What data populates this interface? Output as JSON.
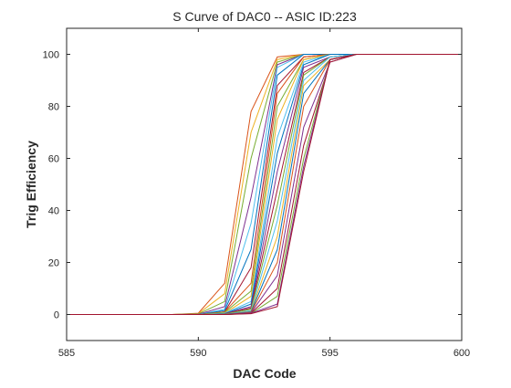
{
  "chart_data": {
    "type": "line",
    "title": "S Curve of DAC0 -- ASIC ID:223",
    "xlabel": "DAC Code",
    "ylabel": "Trig Efficiency",
    "xlim": [
      585,
      600
    ],
    "ylim": [
      -10,
      110
    ],
    "xticks": [
      585,
      590,
      595,
      600
    ],
    "yticks": [
      0,
      20,
      40,
      60,
      80,
      100
    ],
    "grid": false,
    "legend": "none",
    "x": [
      585,
      586,
      587,
      588,
      589,
      590,
      591,
      592,
      593,
      594,
      595,
      596,
      597,
      598,
      599,
      600
    ],
    "series": [
      {
        "color": "#d95319",
        "values": [
          0,
          0,
          0,
          0,
          0,
          0.5,
          12,
          78,
          99,
          100,
          100,
          100,
          100,
          100,
          100,
          100
        ]
      },
      {
        "color": "#edb120",
        "values": [
          0,
          0,
          0,
          0,
          0,
          0.3,
          8,
          70,
          98,
          100,
          100,
          100,
          100,
          100,
          100,
          100
        ]
      },
      {
        "color": "#77ac30",
        "values": [
          0,
          0,
          0,
          0,
          0,
          0.2,
          5,
          60,
          97,
          100,
          100,
          100,
          100,
          100,
          100,
          100
        ]
      },
      {
        "color": "#7e2f8e",
        "values": [
          0,
          0,
          0,
          0,
          0,
          0.1,
          3,
          45,
          96,
          100,
          100,
          100,
          100,
          100,
          100,
          100
        ]
      },
      {
        "color": "#4dbeee",
        "values": [
          0,
          0,
          0,
          0,
          0,
          0,
          2,
          35,
          95,
          100,
          100,
          100,
          100,
          100,
          100,
          100
        ]
      },
      {
        "color": "#0072bd",
        "values": [
          0,
          0,
          0,
          0,
          0,
          0,
          1.5,
          25,
          92,
          100,
          100,
          100,
          100,
          100,
          100,
          100
        ]
      },
      {
        "color": "#a2142f",
        "values": [
          0,
          0,
          0,
          0,
          0,
          0,
          1,
          18,
          88,
          99,
          100,
          100,
          100,
          100,
          100,
          100
        ]
      },
      {
        "color": "#d95319",
        "values": [
          0,
          0,
          0,
          0,
          0,
          0,
          1,
          12,
          85,
          99,
          100,
          100,
          100,
          100,
          100,
          100
        ]
      },
      {
        "color": "#77ac30",
        "values": [
          0,
          0,
          0,
          0,
          0,
          0,
          0.8,
          9,
          80,
          98,
          100,
          100,
          100,
          100,
          100,
          100
        ]
      },
      {
        "color": "#edb120",
        "values": [
          0,
          0,
          0,
          0,
          0,
          0,
          0.5,
          7,
          75,
          98,
          100,
          100,
          100,
          100,
          100,
          100
        ]
      },
      {
        "color": "#4dbeee",
        "values": [
          0,
          0,
          0,
          0,
          0,
          0,
          0.5,
          5,
          68,
          97,
          100,
          100,
          100,
          100,
          100,
          100
        ]
      },
      {
        "color": "#0072bd",
        "values": [
          0,
          0,
          0,
          0,
          0,
          0,
          0.3,
          4,
          62,
          96,
          100,
          100,
          100,
          100,
          100,
          100
        ]
      },
      {
        "color": "#7e2f8e",
        "values": [
          0,
          0,
          0,
          0,
          0,
          0,
          0.3,
          3,
          55,
          95,
          99,
          100,
          100,
          100,
          100,
          100
        ]
      },
      {
        "color": "#a2142f",
        "values": [
          0,
          0,
          0,
          0,
          0,
          0,
          0.2,
          2.5,
          48,
          93,
          99,
          100,
          100,
          100,
          100,
          100
        ]
      },
      {
        "color": "#77ac30",
        "values": [
          0,
          0,
          0,
          0,
          0,
          0,
          0.2,
          2,
          42,
          92,
          99,
          100,
          100,
          100,
          100,
          100
        ]
      },
      {
        "color": "#4dbeee",
        "values": [
          0,
          0,
          0,
          0,
          0,
          0,
          0.1,
          1.5,
          36,
          90,
          99,
          100,
          100,
          100,
          100,
          100
        ]
      },
      {
        "color": "#edb120",
        "values": [
          0,
          0,
          0,
          0,
          0,
          0,
          0.1,
          1.2,
          30,
          88,
          98,
          100,
          100,
          100,
          100,
          100
        ]
      },
      {
        "color": "#0072bd",
        "values": [
          0,
          0,
          0,
          0,
          0,
          0,
          0.1,
          1,
          25,
          85,
          98,
          100,
          100,
          100,
          100,
          100
        ]
      },
      {
        "color": "#d95319",
        "values": [
          0,
          0,
          0,
          0,
          0,
          0,
          0,
          0.8,
          20,
          80,
          98,
          100,
          100,
          100,
          100,
          100
        ]
      },
      {
        "color": "#7e2f8e",
        "values": [
          0,
          0,
          0,
          0,
          0,
          0,
          0,
          0.6,
          15,
          72,
          97,
          100,
          100,
          100,
          100,
          100
        ]
      },
      {
        "color": "#a2142f",
        "values": [
          0,
          0,
          0,
          0,
          0,
          0,
          0,
          0.5,
          10,
          65,
          97,
          100,
          100,
          100,
          100,
          100
        ]
      },
      {
        "color": "#77ac30",
        "values": [
          0,
          0,
          0,
          0,
          0,
          0,
          0,
          0.4,
          7,
          60,
          98,
          100,
          100,
          100,
          100,
          100
        ]
      },
      {
        "color": "#7e2f8e",
        "values": [
          0,
          0,
          0,
          0,
          0,
          0,
          0,
          0.5,
          4,
          57,
          98,
          100,
          100,
          100,
          100,
          100
        ]
      },
      {
        "color": "#a2142f",
        "values": [
          0,
          0,
          0,
          0,
          0,
          0,
          0,
          0.3,
          3,
          55,
          98,
          100,
          100,
          100,
          100,
          100
        ]
      }
    ]
  }
}
